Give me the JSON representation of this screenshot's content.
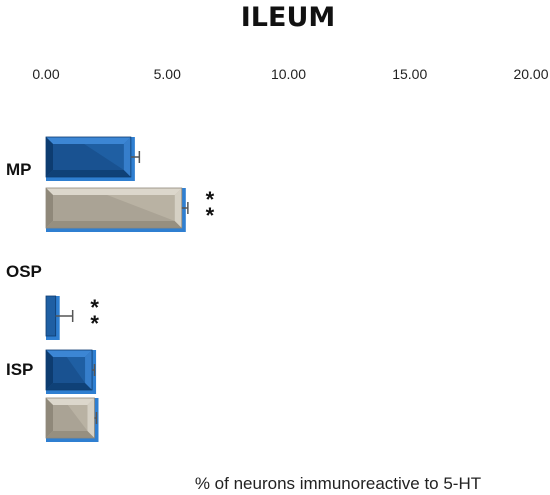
{
  "chart_data": {
    "type": "bar",
    "orientation": "horizontal",
    "title": "ILEUM",
    "xlabel": "% of neurons immunoreactive to 5-HT",
    "ylabel": "",
    "xlim": [
      0,
      20
    ],
    "x_ticks": [
      "0.00",
      "5.00",
      "10.00",
      "15.00",
      "20.00"
    ],
    "x_axis_position": "top",
    "grid": false,
    "legend": "none",
    "groups": [
      {
        "label": "MP",
        "bars": [
          {
            "value": 3.5,
            "error": 0.35,
            "style": "blue",
            "significance": ""
          },
          {
            "value": 5.6,
            "error": 0.25,
            "style": "gray",
            "significance": "**"
          }
        ]
      },
      {
        "label": "OSP",
        "bars": [
          {
            "value": 0.4,
            "error": 0.7,
            "style": "blue",
            "significance": "**"
          }
        ]
      },
      {
        "label": "ISP",
        "bars": [
          {
            "value": 1.9,
            "error": 0.1,
            "style": "blue",
            "significance": ""
          },
          {
            "value": 2.0,
            "error": 0.08,
            "style": "gray",
            "significance": ""
          }
        ]
      }
    ],
    "colors": {
      "blue_face": "#1f5fa3",
      "blue_light": "#3c86d4",
      "blue_dark": "#0d3c70",
      "gray_face": "#b9b2a3",
      "gray_light": "#dcd7cc",
      "gray_dark": "#8f887a",
      "frame_blue": "#2f7fd1",
      "error_bar": "#555555"
    }
  }
}
